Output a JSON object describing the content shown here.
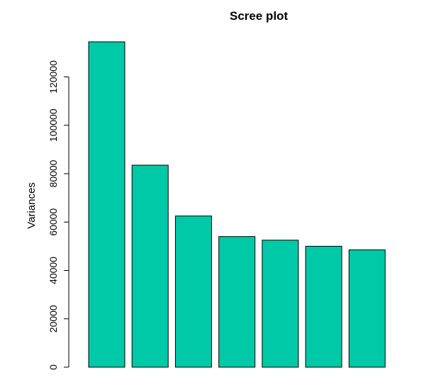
{
  "chart_data": {
    "type": "bar",
    "title": "Scree plot",
    "xlabel": "",
    "ylabel": "Variances",
    "categories": [
      "",
      "",
      "",
      "",
      "",
      "",
      "",
      ""
    ],
    "values": [
      134500,
      83500,
      62500,
      54000,
      52500,
      50000,
      48500,
      0
    ],
    "ylim": [
      0,
      134500
    ],
    "yticks": [
      0,
      20000,
      40000,
      60000,
      80000,
      100000,
      120000
    ],
    "ytick_labels": [
      "0",
      "20000",
      "40000",
      "60000",
      "80000",
      "100000",
      "120000"
    ],
    "bar_color": "#00C9A7",
    "grid": false,
    "legend": "none"
  }
}
